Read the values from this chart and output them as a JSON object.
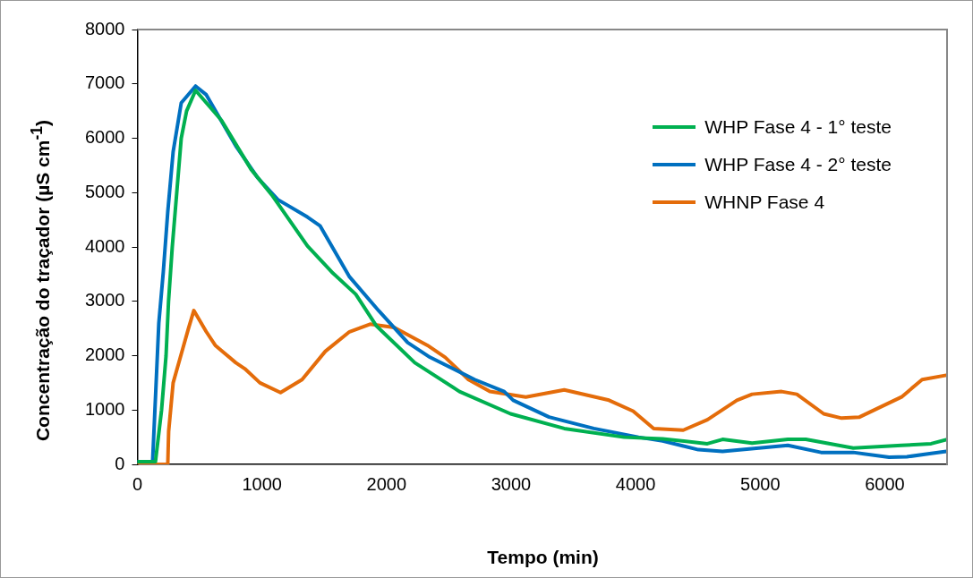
{
  "chart_data": {
    "type": "line",
    "xlabel": "Tempo (min)",
    "ylabel": "Concentração do traçador (µS cm$^{-1}$)",
    "xlim": [
      0,
      6500
    ],
    "xticks": [
      0,
      1000,
      2000,
      3000,
      4000,
      5000,
      6000
    ],
    "ylim": [
      0,
      8000
    ],
    "yticks": [
      0,
      1000,
      2000,
      3000,
      4000,
      5000,
      6000,
      7000,
      8000
    ],
    "grid": false,
    "legend": "top right",
    "marker": "none",
    "line_style": "solid",
    "series": [
      {
        "name": "WHP Fase 4 - 1° teste",
        "color": "#00b050",
        "x": [
          0,
          145,
          194,
          230,
          250,
          280,
          316,
          352,
          395,
          467,
          675,
          912,
          1078,
          1365,
          1560,
          1753,
          1918,
          1990,
          2227,
          2586,
          2996,
          3427,
          3908,
          4217,
          4576,
          4698,
          4935,
          5222,
          5366,
          5747,
          6135,
          6372,
          6500
        ],
        "values": [
          50,
          50,
          1000,
          2000,
          3000,
          4000,
          5000,
          6000,
          6500,
          6880,
          6330,
          5430,
          4960,
          4020,
          3540,
          3130,
          2550,
          2390,
          1870,
          1340,
          930,
          660,
          500,
          470,
          380,
          460,
          390,
          460,
          460,
          300,
          350,
          380,
          460
        ]
      },
      {
        "name": "WHP Fase 4 - 2° teste",
        "color": "#0070c0",
        "x": [
          0,
          122,
          172,
          208,
          244,
          287,
          352,
          467,
          553,
          790,
          963,
          1128,
          1365,
          1466,
          1703,
          1940,
          2170,
          2349,
          2708,
          2945,
          3017,
          3305,
          3664,
          4023,
          4217,
          4504,
          4698,
          5222,
          5489,
          5747,
          6034,
          6178,
          6494
        ],
        "values": [
          50,
          50,
          2600,
          3540,
          4650,
          5750,
          6650,
          6960,
          6800,
          5860,
          5280,
          4870,
          4550,
          4390,
          3450,
          2820,
          2240,
          1970,
          1560,
          1340,
          1180,
          870,
          660,
          500,
          430,
          270,
          240,
          350,
          220,
          220,
          130,
          140,
          240
        ]
      },
      {
        "name": "WHNP Fase 4",
        "color": "#e46c0a",
        "x": [
          0,
          244,
          251,
          287,
          352,
          410,
          453,
          553,
          625,
          790,
          862,
          984,
          1149,
          1322,
          1509,
          1703,
          1868,
          2062,
          2328,
          2471,
          2658,
          2830,
          3118,
          3427,
          3786,
          3980,
          4145,
          4382,
          4576,
          4813,
          4935,
          5172,
          5294,
          5510,
          5654,
          5797,
          6135,
          6300,
          6494
        ],
        "values": [
          0,
          0,
          610,
          1500,
          2030,
          2500,
          2830,
          2440,
          2190,
          1870,
          1760,
          1500,
          1320,
          1560,
          2080,
          2440,
          2580,
          2520,
          2190,
          1970,
          1560,
          1340,
          1240,
          1370,
          1180,
          980,
          660,
          630,
          820,
          1180,
          1290,
          1340,
          1290,
          930,
          850,
          870,
          1240,
          1560,
          1640
        ]
      }
    ]
  }
}
